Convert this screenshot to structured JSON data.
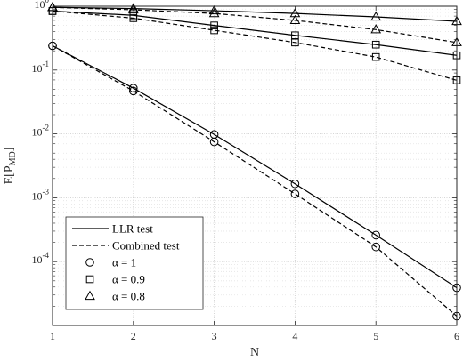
{
  "chart_data": {
    "type": "line",
    "title": "",
    "xlabel": "N",
    "ylabel": "E[P_MD]",
    "ylabel_parts": {
      "main": "E[P",
      "sub": "MD",
      "close": "]"
    },
    "x": [
      1,
      2,
      3,
      4,
      5,
      6
    ],
    "x_ticks": [
      "1",
      "2",
      "3",
      "4",
      "5",
      "6"
    ],
    "xlim": [
      1,
      6
    ],
    "y_scale": "log",
    "ylim": [
      1e-05,
      1
    ],
    "y_ticks": [
      {
        "value": 1,
        "base": "10",
        "exp": "0"
      },
      {
        "value": 0.1,
        "base": "10",
        "exp": "-1"
      },
      {
        "value": 0.01,
        "base": "10",
        "exp": "-2"
      },
      {
        "value": 0.001,
        "base": "10",
        "exp": "-3"
      },
      {
        "value": 0.0001,
        "base": "10",
        "exp": "-4"
      }
    ],
    "grid": true,
    "legend_position": "bottom-left",
    "legend": [
      {
        "label": "LLR test",
        "kind": "line",
        "style": "solid"
      },
      {
        "label": "Combined test",
        "kind": "line",
        "style": "dashed"
      },
      {
        "label": "α = 1",
        "kind": "marker",
        "marker": "circle"
      },
      {
        "label": "α = 0.9",
        "kind": "marker",
        "marker": "square"
      },
      {
        "label": "α = 0.8",
        "kind": "marker",
        "marker": "triangle"
      }
    ],
    "series": [
      {
        "test": "LLR test",
        "alpha": "1",
        "style": "solid",
        "marker": "circle",
        "values": [
          0.24,
          0.052,
          0.0098,
          0.00165,
          0.00026,
          3.9e-05
        ]
      },
      {
        "test": "Combined test",
        "alpha": "1",
        "style": "dashed",
        "marker": "circle",
        "values": [
          0.24,
          0.047,
          0.0075,
          0.00115,
          0.00017,
          1.4e-05
        ]
      },
      {
        "test": "LLR test",
        "alpha": "0.9",
        "style": "solid",
        "marker": "square",
        "values": [
          0.84,
          0.72,
          0.5,
          0.35,
          0.25,
          0.17
        ]
      },
      {
        "test": "Combined test",
        "alpha": "0.9",
        "style": "dashed",
        "marker": "square",
        "values": [
          0.84,
          0.65,
          0.42,
          0.27,
          0.16,
          0.069
        ]
      },
      {
        "test": "LLR test",
        "alpha": "0.8",
        "style": "solid",
        "marker": "triangle",
        "values": [
          0.96,
          0.92,
          0.85,
          0.77,
          0.68,
          0.58
        ]
      },
      {
        "test": "Combined test",
        "alpha": "0.8",
        "style": "dashed",
        "marker": "triangle",
        "values": [
          0.96,
          0.88,
          0.77,
          0.6,
          0.43,
          0.27
        ]
      }
    ],
    "colors": {
      "line": "#000000",
      "grid": "#d0d0d0",
      "axis": "#262626"
    }
  }
}
